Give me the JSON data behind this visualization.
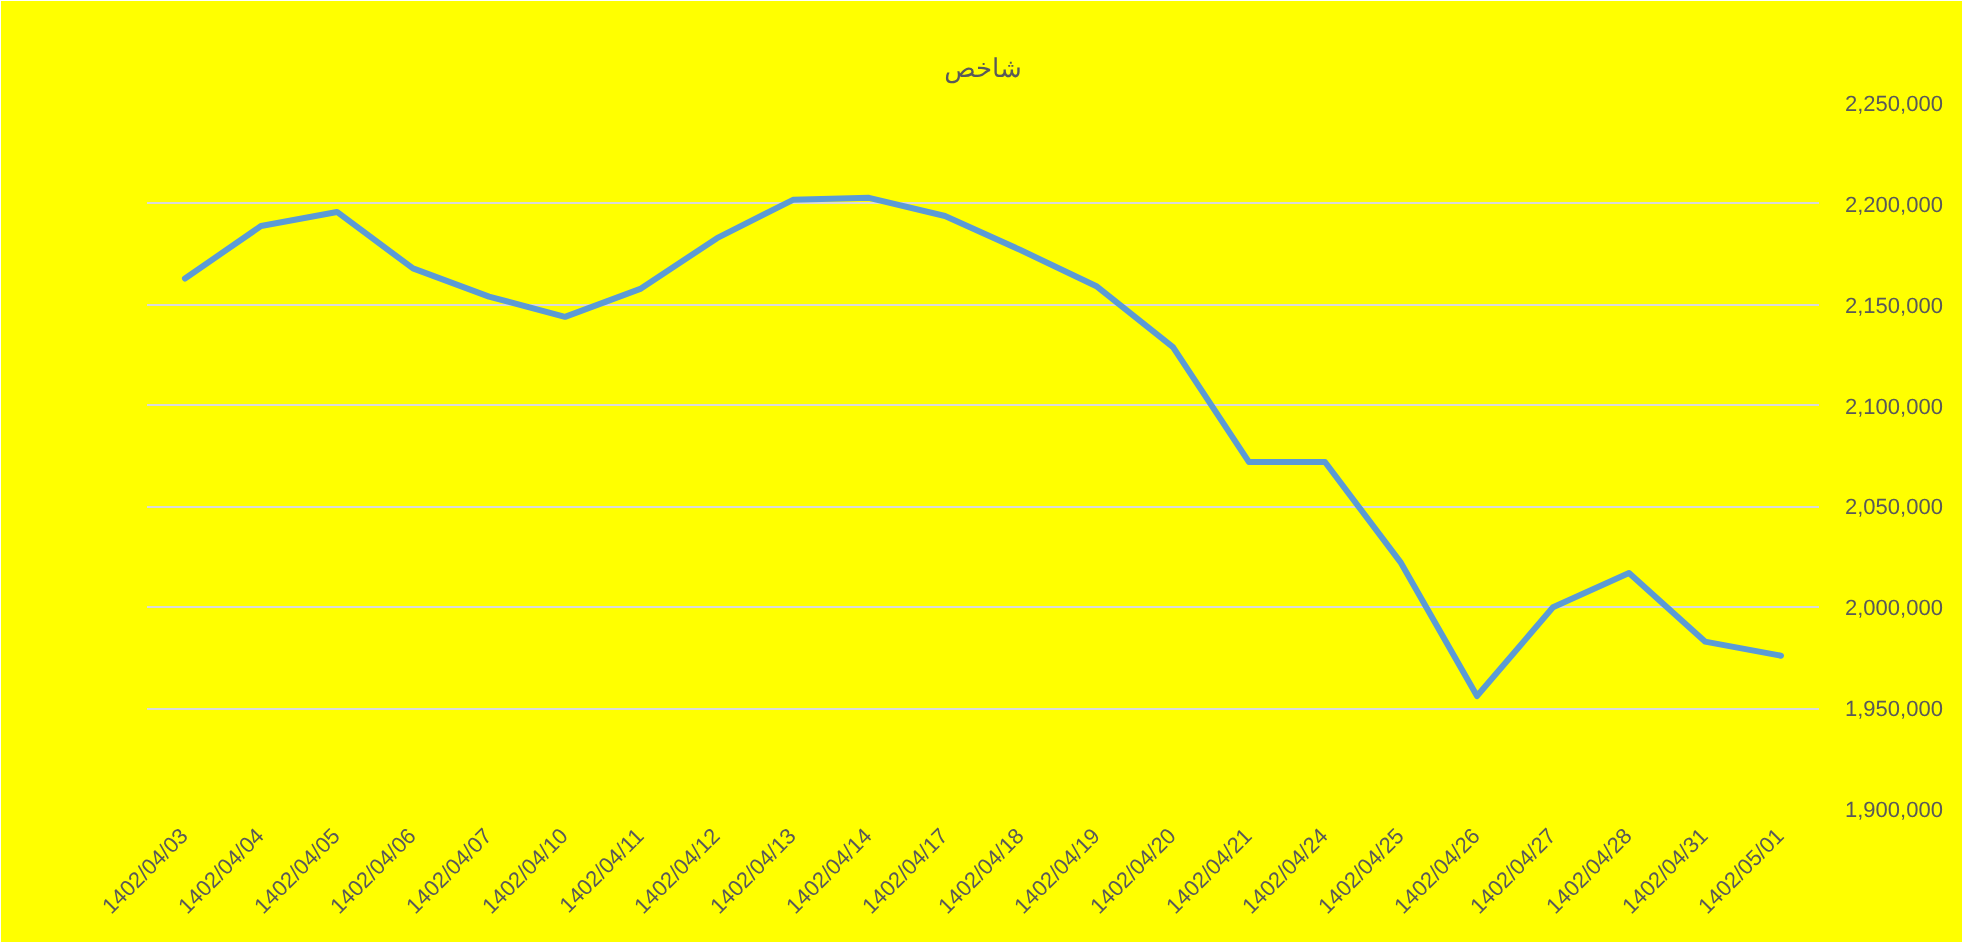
{
  "chart_data": {
    "type": "line",
    "title": "شاخص",
    "categories": [
      "1402/04/03",
      "1402/04/04",
      "1402/04/05",
      "1402/04/06",
      "1402/04/07",
      "1402/04/10",
      "1402/04/11",
      "1402/04/12",
      "1402/04/13",
      "1402/04/14",
      "1402/04/17",
      "1402/04/18",
      "1402/04/19",
      "1402/04/20",
      "1402/04/21",
      "1402/04/24",
      "1402/04/25",
      "1402/04/26",
      "1402/04/27",
      "1402/04/28",
      "1402/04/31",
      "1402/05/01"
    ],
    "series": [
      {
        "color": "#5b9bd5",
        "values": [
          2163000,
          2189000,
          2196000,
          2168000,
          2154000,
          2144000,
          2158000,
          2183000,
          2202000,
          2203000,
          2194000,
          2177000,
          2159000,
          2129000,
          2072000,
          2072000,
          2022000,
          1956000,
          2000000,
          2017000,
          1983000,
          1976000
        ]
      }
    ],
    "ylim": [
      1900000,
      2250000
    ],
    "yticks": [
      {
        "value": 1900000,
        "label": "1,900,000"
      },
      {
        "value": 1950000,
        "label": "1,950,000"
      },
      {
        "value": 2000000,
        "label": "2,000,000"
      },
      {
        "value": 2050000,
        "label": "2,050,000"
      },
      {
        "value": 2100000,
        "label": "2,100,000"
      },
      {
        "value": 2150000,
        "label": "2,150,000"
      },
      {
        "value": 2200000,
        "label": "2,200,000"
      },
      {
        "value": 2250000,
        "label": "2,250,000"
      }
    ],
    "grid": "y",
    "line_style": "solid"
  }
}
